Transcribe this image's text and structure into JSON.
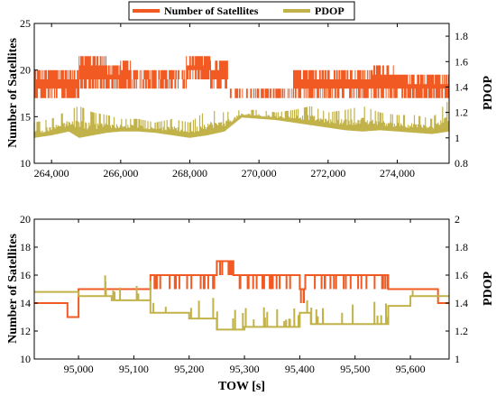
{
  "colors": {
    "satellites": "#f15a22",
    "pdop": "#c2b24a"
  },
  "legend": {
    "satellites": "Number of Satellites",
    "pdop": "PDOP",
    "placement": "top-center"
  },
  "chart_data": [
    {
      "type": "line",
      "xlabel": "",
      "ylabel": "Number of Satellites",
      "y2label": "PDOP",
      "xlim": [
        263500,
        275500
      ],
      "ylim": [
        10,
        25
      ],
      "y2lim": [
        0.8,
        1.9
      ],
      "x_ticks": [
        264000,
        266000,
        268000,
        270000,
        272000,
        274000
      ],
      "x_tick_labels": [
        "264,000",
        "266,000",
        "268,000",
        "270,000",
        "272,000",
        "274,000"
      ],
      "y_ticks": [
        10,
        15,
        20,
        25
      ],
      "y_tick_labels": [
        "10",
        "15",
        "20",
        "25"
      ],
      "y2_ticks": [
        0.8,
        1.0,
        1.2,
        1.4,
        1.6,
        1.8
      ],
      "y2_tick_labels": [
        "0.8",
        "1",
        "1.2",
        "1.4",
        "1.6",
        "1.8"
      ],
      "grid": false,
      "series": [
        {
          "name": "Number of Satellites",
          "axis": "left",
          "segments": [
            {
              "x0": 263500,
              "x1": 264800,
              "lo": 17,
              "hi": 20
            },
            {
              "x0": 264800,
              "x1": 265600,
              "lo": 18,
              "hi": 21.5
            },
            {
              "x0": 265600,
              "x1": 266000,
              "lo": 18,
              "hi": 20.5
            },
            {
              "x0": 266000,
              "x1": 266300,
              "lo": 18,
              "hi": 21
            },
            {
              "x0": 266300,
              "x1": 267900,
              "lo": 18,
              "hi": 20
            },
            {
              "x0": 267900,
              "x1": 268600,
              "lo": 19,
              "hi": 21.5
            },
            {
              "x0": 268600,
              "x1": 269100,
              "lo": 18,
              "hi": 21
            },
            {
              "x0": 269100,
              "x1": 271000,
              "lo": 17,
              "hi": 18
            },
            {
              "x0": 271000,
              "x1": 273300,
              "lo": 17,
              "hi": 20
            },
            {
              "x0": 273300,
              "x1": 273900,
              "lo": 17,
              "hi": 20.5
            },
            {
              "x0": 273900,
              "x1": 275500,
              "lo": 17,
              "hi": 19.5
            }
          ]
        },
        {
          "name": "PDOP",
          "axis": "right",
          "x": [
            263500,
            264000,
            264500,
            264800,
            265200,
            265600,
            266000,
            266500,
            267000,
            267500,
            268000,
            268500,
            269000,
            269500,
            270000,
            270500,
            271000,
            271500,
            272000,
            272500,
            273000,
            273500,
            274000,
            274500,
            275000,
            275500
          ],
          "lo": [
            1.0,
            1.02,
            1.05,
            1.0,
            1.02,
            1.04,
            1.05,
            1.05,
            1.04,
            1.02,
            1.0,
            1.02,
            1.05,
            1.16,
            1.15,
            1.14,
            1.12,
            1.1,
            1.08,
            1.06,
            1.05,
            1.06,
            1.05,
            1.04,
            1.03,
            1.05
          ],
          "hi": [
            1.12,
            1.15,
            1.22,
            1.25,
            1.2,
            1.18,
            1.15,
            1.15,
            1.12,
            1.15,
            1.12,
            1.22,
            1.2,
            1.22,
            1.22,
            1.2,
            1.22,
            1.25,
            1.2,
            1.22,
            1.25,
            1.2,
            1.18,
            1.18,
            1.15,
            1.3
          ]
        }
      ]
    },
    {
      "type": "line",
      "xlabel": "TOW [s]",
      "ylabel": "Number of Satellites",
      "y2label": "PDOP",
      "xlim": [
        94920,
        95670
      ],
      "ylim": [
        10,
        20
      ],
      "y2lim": [
        1.0,
        2.0
      ],
      "x_ticks": [
        95000,
        95100,
        95200,
        95300,
        95400,
        95500,
        95600
      ],
      "x_tick_labels": [
        "95,000",
        "95,100",
        "95,200",
        "95,300",
        "95,400",
        "95,500",
        "95,600"
      ],
      "y_ticks": [
        10,
        12,
        14,
        16,
        18,
        20
      ],
      "y_tick_labels": [
        "10",
        "12",
        "14",
        "16",
        "18",
        "20"
      ],
      "y2_ticks": [
        1.0,
        1.2,
        1.4,
        1.6,
        1.8,
        2.0
      ],
      "y2_tick_labels": [
        "1",
        "1.2",
        "1.4",
        "1.6",
        "1.8",
        "2"
      ],
      "grid": false,
      "series": [
        {
          "name": "Number of Satellites",
          "axis": "left",
          "x": [
            94920,
            94980,
            94980,
            95000,
            95000,
            95130,
            95130,
            95250,
            95250,
            95280,
            95280,
            95400,
            95400,
            95410,
            95410,
            95560,
            95560,
            95650,
            95650,
            95670
          ],
          "y": [
            14,
            14,
            13,
            13,
            15,
            15,
            16,
            16,
            17,
            17,
            16,
            16,
            15,
            15,
            16,
            16,
            15,
            15,
            14,
            14
          ]
        },
        {
          "name": "PDOP",
          "axis": "right",
          "x": [
            94920,
            95000,
            95000,
            95060,
            95060,
            95130,
            95130,
            95200,
            95200,
            95250,
            95250,
            95300,
            95300,
            95400,
            95400,
            95420,
            95420,
            95560,
            95560,
            95600,
            95600,
            95670
          ],
          "y": [
            1.48,
            1.48,
            1.45,
            1.45,
            1.42,
            1.42,
            1.33,
            1.33,
            1.29,
            1.29,
            1.21,
            1.21,
            1.23,
            1.23,
            1.33,
            1.33,
            1.25,
            1.25,
            1.38,
            1.38,
            1.45,
            1.45
          ]
        }
      ]
    }
  ]
}
